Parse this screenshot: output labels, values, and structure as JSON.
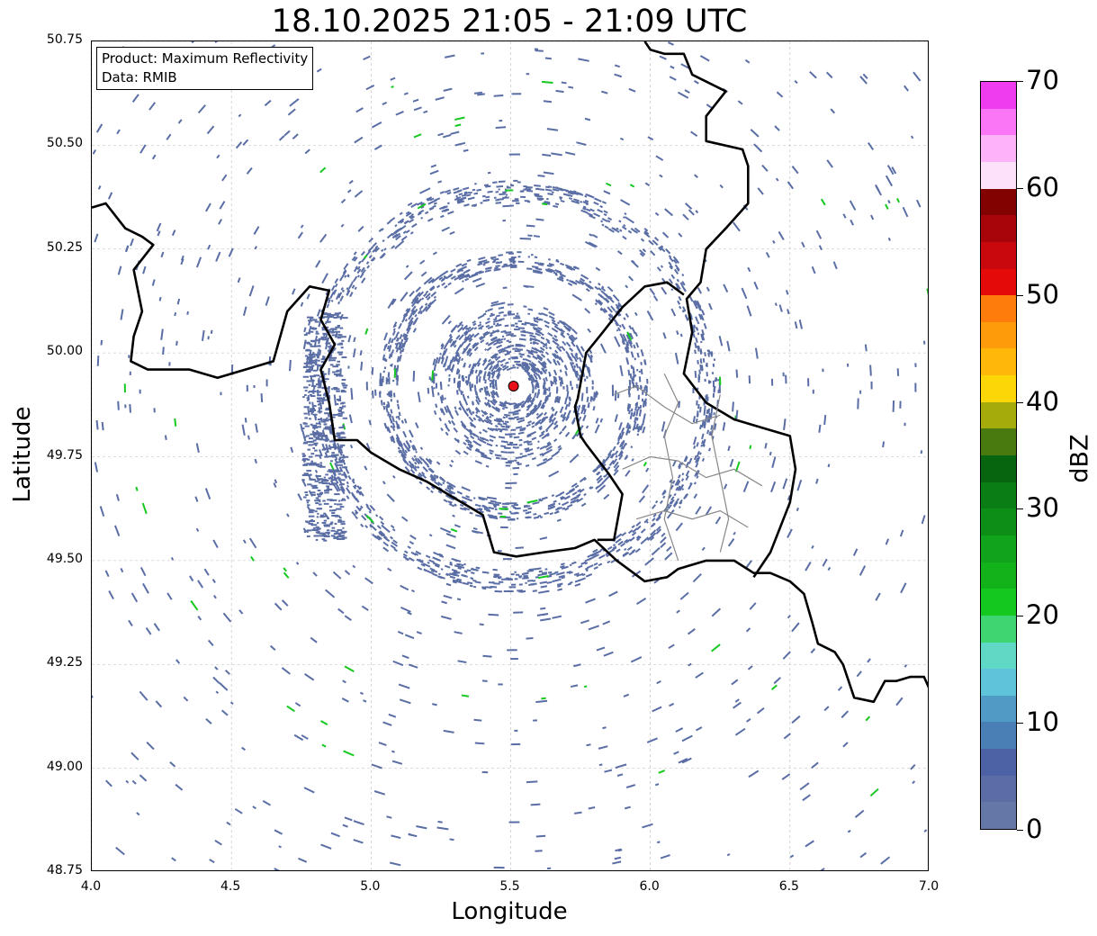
{
  "title": "18.10.2025 21:05 - 21:09 UTC",
  "legend": {
    "product": "Product: Maximum Reflectivity",
    "data": "Data: RMIB"
  },
  "axes": {
    "xlabel": "Longitude",
    "ylabel": "Latitude",
    "x_ticks": [
      "4.0",
      "4.5",
      "5.0",
      "5.5",
      "6.0",
      "6.5",
      "7.0"
    ],
    "y_ticks": [
      "50.75",
      "50.50",
      "50.25",
      "50.00",
      "49.75",
      "49.50",
      "49.25",
      "49.00",
      "48.75"
    ],
    "xlim": [
      4.0,
      7.0
    ],
    "ylim": [
      48.75,
      50.75
    ],
    "grid": true
  },
  "radar_site": {
    "lon": 5.51,
    "lat": 49.92,
    "color": "#e8101a"
  },
  "colorbar": {
    "label": "dBZ",
    "ticks": [
      "0",
      "10",
      "20",
      "30",
      "40",
      "50",
      "60",
      "70"
    ],
    "range": [
      0,
      70
    ],
    "colors": [
      "#6577a6",
      "#5a6ea5",
      "#4c62a5",
      "#4a7fb5",
      "#4f9bc5",
      "#5fc3da",
      "#5fd8c5",
      "#3ed670",
      "#15c81f",
      "#12b21a",
      "#10a31b",
      "#0d8e16",
      "#0a7d14",
      "#07650f",
      "#497a0f",
      "#a6ab0c",
      "#fcd607",
      "#fdb80a",
      "#fd9b0b",
      "#fd7c0c",
      "#e50a0a",
      "#c8080d",
      "#a8050a",
      "#820202",
      "#fde0fa",
      "#fcb3f7",
      "#fb75f7",
      "#ef3cef"
    ]
  },
  "colors": {
    "echo_blue": "#5a6ea5",
    "echo_green": "#15c81f",
    "border": "#000000",
    "province": "#888888"
  }
}
